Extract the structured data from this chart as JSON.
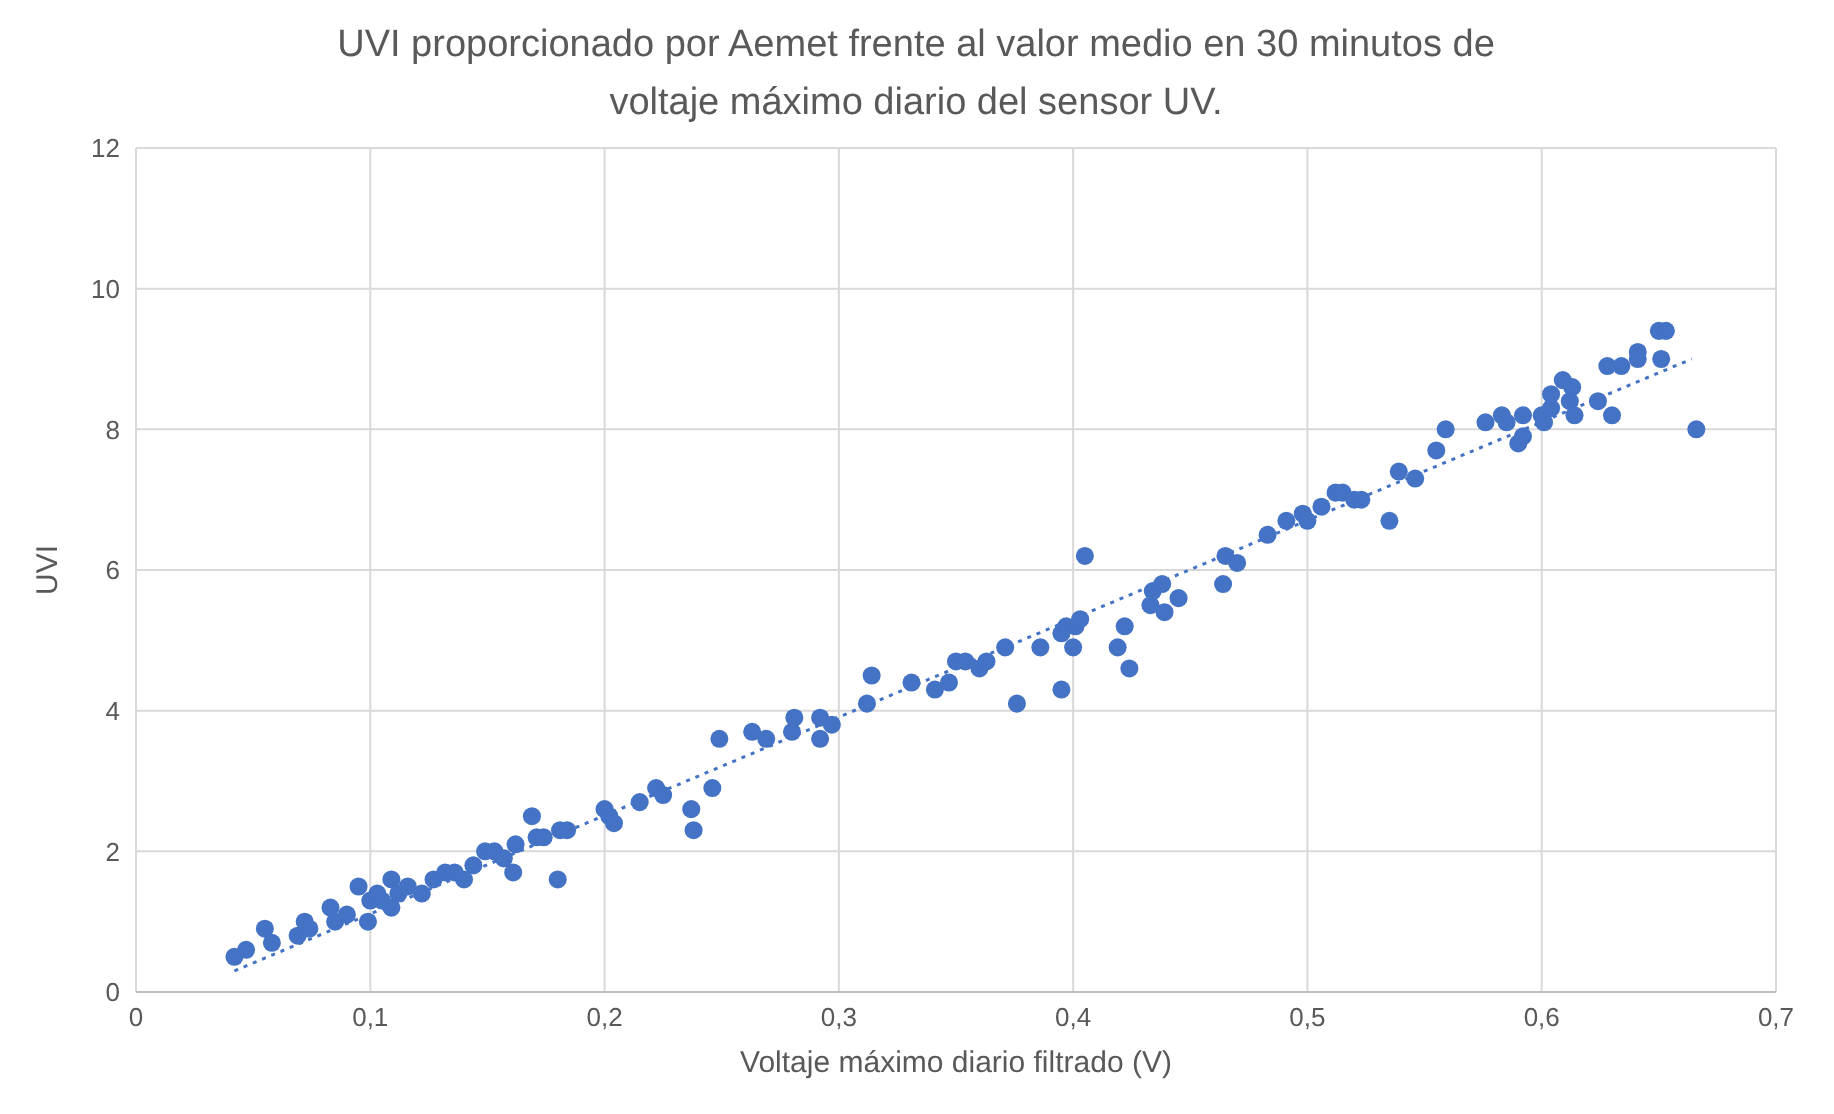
{
  "chart_data": {
    "type": "scatter",
    "title": "UVI proporcionado por Aemet frente al valor medio en 30 minutos de voltaje máximo diario del sensor UV.",
    "xlabel": "Voltaje máximo diario filtrado (V)",
    "ylabel": "UVI",
    "xlim": [
      0,
      0.7
    ],
    "xticks": [
      0,
      {
        "value": 0.1,
        "label": "0,1"
      },
      {
        "value": 0.2,
        "label": "0,2"
      },
      {
        "value": 0.3,
        "label": "0,3"
      },
      {
        "value": 0.4,
        "label": "0,4"
      },
      {
        "value": 0.5,
        "label": "0,5"
      },
      {
        "value": 0.6,
        "label": "0,6"
      },
      {
        "value": 0.7,
        "label": "0,7"
      }
    ],
    "ylim": [
      0,
      12
    ],
    "yticks": [
      0,
      2,
      4,
      6,
      8,
      10,
      12
    ],
    "grid": true,
    "series": [
      {
        "marker": "circle",
        "color": "#4472c4",
        "x": [
          0.042,
          0.047,
          0.055,
          0.058,
          0.069,
          0.072,
          0.074,
          0.083,
          0.085,
          0.09,
          0.095,
          0.099,
          0.1,
          0.103,
          0.105,
          0.109,
          0.109,
          0.112,
          0.116,
          0.122,
          0.127,
          0.132,
          0.136,
          0.14,
          0.144,
          0.149,
          0.153,
          0.157,
          0.161,
          0.162,
          0.169,
          0.171,
          0.174,
          0.18,
          0.181,
          0.184,
          0.2,
          0.204,
          0.202,
          0.215,
          0.222,
          0.225,
          0.237,
          0.238,
          0.246,
          0.249,
          0.263,
          0.269,
          0.28,
          0.281,
          0.292,
          0.292,
          0.297,
          0.312,
          0.314,
          0.331,
          0.341,
          0.347,
          0.35,
          0.354,
          0.36,
          0.363,
          0.371,
          0.376,
          0.386,
          0.395,
          0.395,
          0.397,
          0.4,
          0.401,
          0.403,
          0.405,
          0.419,
          0.422,
          0.424,
          0.433,
          0.434,
          0.438,
          0.439,
          0.445,
          0.464,
          0.465,
          0.47,
          0.483,
          0.491,
          0.498,
          0.5,
          0.506,
          0.512,
          0.515,
          0.52,
          0.523,
          0.535,
          0.539,
          0.546,
          0.555,
          0.559,
          0.576,
          0.583,
          0.585,
          0.59,
          0.592,
          0.592,
          0.6,
          0.601,
          0.604,
          0.604,
          0.609,
          0.613,
          0.612,
          0.614,
          0.624,
          0.628,
          0.63,
          0.634,
          0.641,
          0.641,
          0.65,
          0.653,
          0.651,
          0.666
        ],
        "values": [
          0.5,
          0.6,
          0.9,
          0.7,
          0.8,
          1.0,
          0.9,
          1.2,
          1.0,
          1.1,
          1.5,
          1.0,
          1.3,
          1.4,
          1.3,
          1.6,
          1.2,
          1.4,
          1.5,
          1.4,
          1.6,
          1.7,
          1.7,
          1.6,
          1.8,
          2.0,
          2.0,
          1.9,
          1.7,
          2.1,
          2.5,
          2.2,
          2.2,
          1.6,
          2.3,
          2.3,
          2.6,
          2.4,
          2.5,
          2.7,
          2.9,
          2.8,
          2.6,
          2.3,
          2.9,
          3.6,
          3.7,
          3.6,
          3.7,
          3.9,
          3.9,
          3.6,
          3.8,
          4.1,
          4.5,
          4.4,
          4.3,
          4.4,
          4.7,
          4.7,
          4.6,
          4.7,
          4.9,
          4.1,
          4.9,
          4.3,
          5.1,
          5.2,
          4.9,
          5.2,
          5.3,
          6.2,
          4.9,
          5.2,
          4.6,
          5.5,
          5.7,
          5.8,
          5.4,
          5.6,
          5.8,
          6.2,
          6.1,
          6.5,
          6.7,
          6.8,
          6.7,
          6.9,
          7.1,
          7.1,
          7.0,
          7.0,
          6.7,
          7.4,
          7.3,
          7.7,
          8.0,
          8.1,
          8.2,
          8.1,
          7.8,
          7.9,
          8.2,
          8.2,
          8.1,
          8.3,
          8.5,
          8.7,
          8.6,
          8.4,
          8.2,
          8.4,
          8.9,
          8.2,
          8.9,
          9.1,
          9.0,
          9.4,
          9.4,
          9.0,
          8.0
        ]
      },
      {
        "type": "line",
        "color": "#4472c4",
        "line_style": "dotted",
        "x": [
          0.042,
          0.664
        ],
        "values": [
          0.3,
          9.0
        ]
      }
    ]
  }
}
